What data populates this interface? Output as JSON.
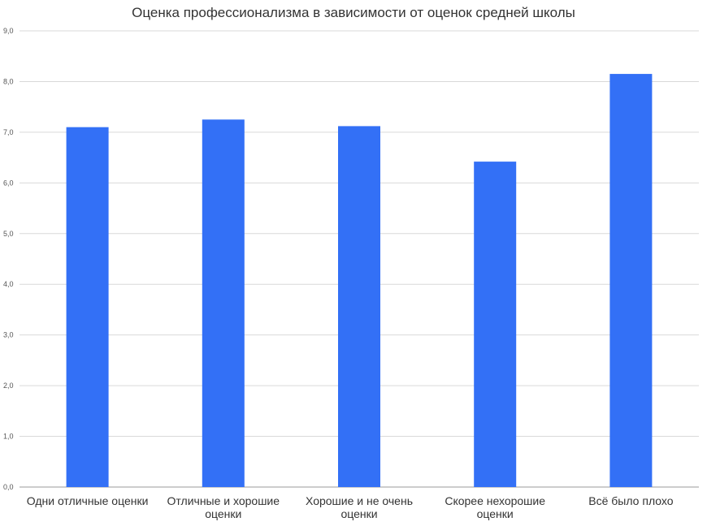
{
  "chart_data": {
    "type": "bar",
    "title": "Оценка профессионализма в зависимости от оценок средней школы",
    "xlabel": "",
    "ylabel": "",
    "categories": [
      [
        "Одни отличные оценки"
      ],
      [
        "Отличные и хорошие",
        "оценки"
      ],
      [
        "Хорошие и не очень",
        "оценки"
      ],
      [
        "Скорее нехорошие",
        "оценки"
      ],
      [
        "Всё было плохо"
      ]
    ],
    "values": [
      7.1,
      7.25,
      7.12,
      6.42,
      8.15
    ],
    "ylim": [
      0,
      9
    ],
    "yticks": [
      "0,0",
      "1,0",
      "2,0",
      "3,0",
      "4,0",
      "5,0",
      "6,0",
      "7,0",
      "8,0",
      "9,0"
    ],
    "grid": true,
    "legend": "none",
    "bar_color": "#3370f6",
    "grid_color": "#d9d9d9"
  }
}
